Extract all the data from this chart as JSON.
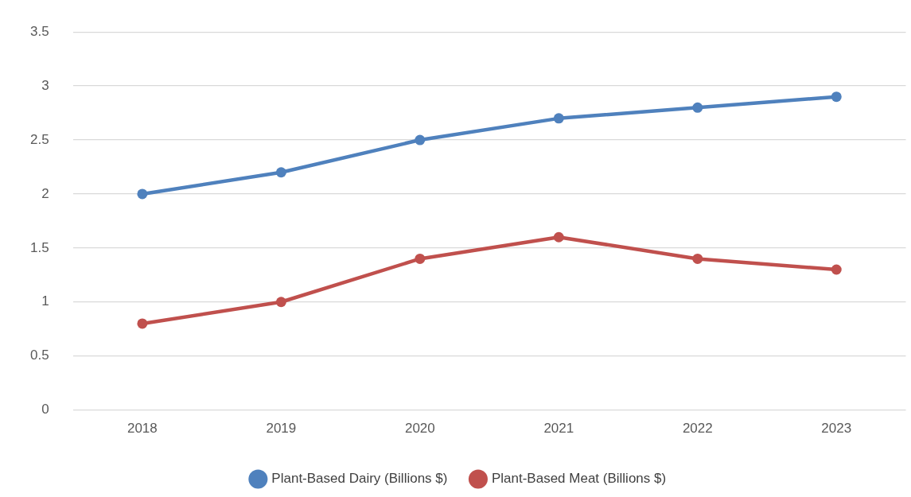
{
  "chart_data": {
    "type": "line",
    "categories": [
      "2018",
      "2019",
      "2020",
      "2021",
      "2022",
      "2023"
    ],
    "series": [
      {
        "name": "Plant-Based Dairy (Billions $)",
        "color": "#4f81bd",
        "values": [
          2.0,
          2.2,
          2.5,
          2.7,
          2.8,
          2.9
        ]
      },
      {
        "name": "Plant-Based Meat (Billions $)",
        "color": "#c0504d",
        "values": [
          0.8,
          1.0,
          1.4,
          1.6,
          1.4,
          1.3
        ]
      }
    ],
    "ylim": [
      0,
      3.5
    ],
    "yticks": [
      0,
      0.5,
      1,
      1.5,
      2,
      2.5,
      3,
      3.5
    ],
    "grid": "y",
    "legend": "bottom",
    "marker": "circle",
    "line_style": "solid"
  }
}
